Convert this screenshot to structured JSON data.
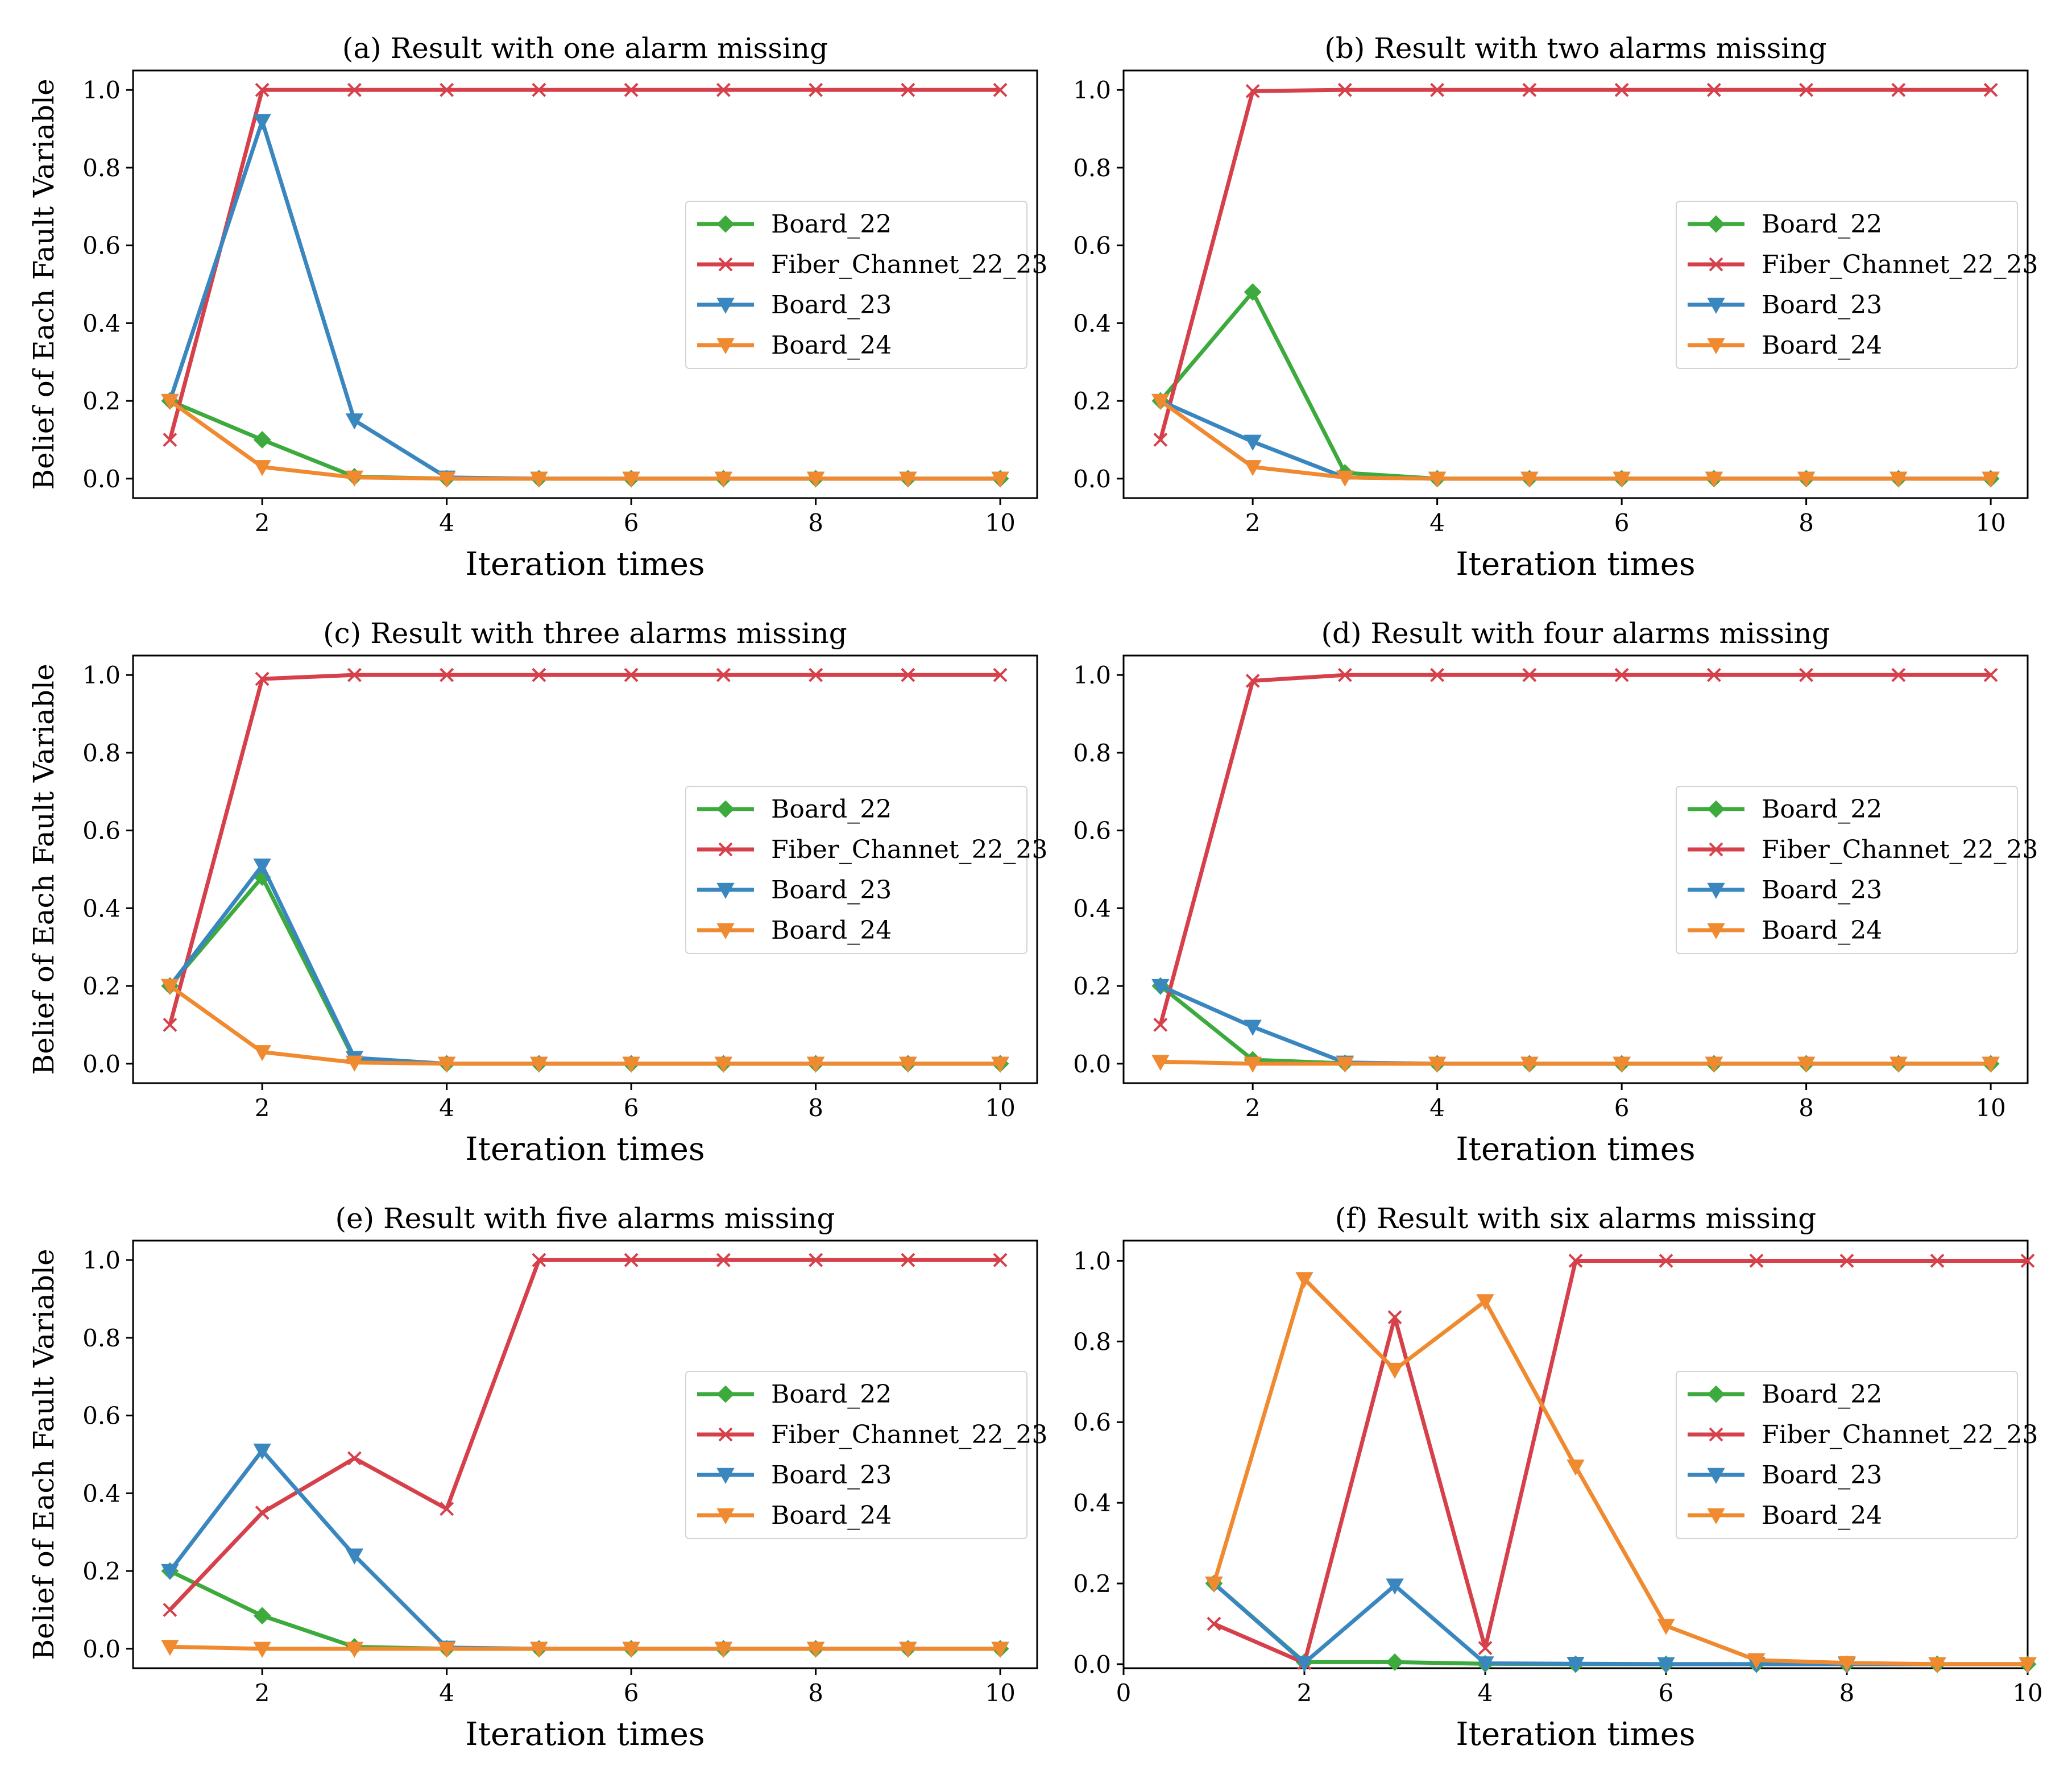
{
  "colors": {
    "Board_22": "#3caa3c",
    "Fiber_Channet_22_23": "#d6404a",
    "Board_23": "#3a87bf",
    "Board_24": "#f08a30"
  },
  "chart_data": [
    {
      "type": "line",
      "title": "(a) Result with one alarm missing",
      "xlabel": "Iteration times",
      "ylabel": "Belief of Each Fault Variable",
      "xlim": [
        0.6,
        10.4
      ],
      "ylim": [
        -0.05,
        1.05
      ],
      "xticks": [
        2,
        4,
        6,
        8,
        10
      ],
      "yticks": [
        0.0,
        0.2,
        0.4,
        0.6,
        0.8,
        1.0
      ],
      "legend_position": "center-right",
      "x": [
        1,
        2,
        3,
        4,
        5,
        6,
        7,
        8,
        9,
        10
      ],
      "series": [
        {
          "name": "Board_22",
          "marker": "diamond",
          "values": [
            0.2,
            0.1,
            0.005,
            0.0,
            0.0,
            0.0,
            0.0,
            0.0,
            0.0,
            0.0
          ]
        },
        {
          "name": "Fiber_Channet_22_23",
          "marker": "x",
          "values": [
            0.1,
            1.0,
            1.0,
            1.0,
            1.0,
            1.0,
            1.0,
            1.0,
            1.0,
            1.0
          ]
        },
        {
          "name": "Board_23",
          "marker": "triangle-down",
          "values": [
            0.2,
            0.92,
            0.15,
            0.003,
            0.0,
            0.0,
            0.0,
            0.0,
            0.0,
            0.0
          ]
        },
        {
          "name": "Board_24",
          "marker": "triangle-down",
          "values": [
            0.2,
            0.03,
            0.003,
            0.0,
            0.0,
            0.0,
            0.0,
            0.0,
            0.0,
            0.0
          ]
        }
      ]
    },
    {
      "type": "line",
      "title": "(b) Result with two alarms missing",
      "xlabel": "Iteration times",
      "ylabel": "",
      "xlim": [
        0.6,
        10.4
      ],
      "ylim": [
        -0.05,
        1.05
      ],
      "xticks": [
        2,
        4,
        6,
        8,
        10
      ],
      "yticks": [
        0.0,
        0.2,
        0.4,
        0.6,
        0.8,
        1.0
      ],
      "legend_position": "center-right",
      "x": [
        1,
        2,
        3,
        4,
        5,
        6,
        7,
        8,
        9,
        10
      ],
      "series": [
        {
          "name": "Board_22",
          "marker": "diamond",
          "values": [
            0.2,
            0.48,
            0.015,
            0.0,
            0.0,
            0.0,
            0.0,
            0.0,
            0.0,
            0.0
          ]
        },
        {
          "name": "Fiber_Channet_22_23",
          "marker": "x",
          "values": [
            0.1,
            0.997,
            1.0,
            1.0,
            1.0,
            1.0,
            1.0,
            1.0,
            1.0,
            1.0
          ]
        },
        {
          "name": "Board_23",
          "marker": "triangle-down",
          "values": [
            0.2,
            0.095,
            0.003,
            0.0,
            0.0,
            0.0,
            0.0,
            0.0,
            0.0,
            0.0
          ]
        },
        {
          "name": "Board_24",
          "marker": "triangle-down",
          "values": [
            0.2,
            0.03,
            0.003,
            0.0,
            0.0,
            0.0,
            0.0,
            0.0,
            0.0,
            0.0
          ]
        }
      ]
    },
    {
      "type": "line",
      "title": "(c) Result with three alarms missing",
      "xlabel": "Iteration times",
      "ylabel": "Belief of Each Fault Variable",
      "xlim": [
        0.6,
        10.4
      ],
      "ylim": [
        -0.05,
        1.05
      ],
      "xticks": [
        2,
        4,
        6,
        8,
        10
      ],
      "yticks": [
        0.0,
        0.2,
        0.4,
        0.6,
        0.8,
        1.0
      ],
      "legend_position": "center-right",
      "x": [
        1,
        2,
        3,
        4,
        5,
        6,
        7,
        8,
        9,
        10
      ],
      "series": [
        {
          "name": "Board_22",
          "marker": "diamond",
          "values": [
            0.2,
            0.48,
            0.01,
            0.0,
            0.0,
            0.0,
            0.0,
            0.0,
            0.0,
            0.0
          ]
        },
        {
          "name": "Fiber_Channet_22_23",
          "marker": "x",
          "values": [
            0.1,
            0.99,
            1.0,
            1.0,
            1.0,
            1.0,
            1.0,
            1.0,
            1.0,
            1.0
          ]
        },
        {
          "name": "Board_23",
          "marker": "triangle-down",
          "values": [
            0.2,
            0.51,
            0.015,
            0.0,
            0.0,
            0.0,
            0.0,
            0.0,
            0.0,
            0.0
          ]
        },
        {
          "name": "Board_24",
          "marker": "triangle-down",
          "values": [
            0.2,
            0.03,
            0.003,
            0.0,
            0.0,
            0.0,
            0.0,
            0.0,
            0.0,
            0.0
          ]
        }
      ]
    },
    {
      "type": "line",
      "title": "(d) Result with four alarms missing",
      "xlabel": "Iteration times",
      "ylabel": "",
      "xlim": [
        0.6,
        10.4
      ],
      "ylim": [
        -0.05,
        1.05
      ],
      "xticks": [
        2,
        4,
        6,
        8,
        10
      ],
      "yticks": [
        0.0,
        0.2,
        0.4,
        0.6,
        0.8,
        1.0
      ],
      "legend_position": "center-right",
      "x": [
        1,
        2,
        3,
        4,
        5,
        6,
        7,
        8,
        9,
        10
      ],
      "series": [
        {
          "name": "Board_22",
          "marker": "diamond",
          "values": [
            0.2,
            0.01,
            0.001,
            0.0,
            0.0,
            0.0,
            0.0,
            0.0,
            0.0,
            0.0
          ]
        },
        {
          "name": "Fiber_Channet_22_23",
          "marker": "x",
          "values": [
            0.1,
            0.985,
            1.0,
            1.0,
            1.0,
            1.0,
            1.0,
            1.0,
            1.0,
            1.0
          ]
        },
        {
          "name": "Board_23",
          "marker": "triangle-down",
          "values": [
            0.2,
            0.095,
            0.003,
            0.0,
            0.0,
            0.0,
            0.0,
            0.0,
            0.0,
            0.0
          ]
        },
        {
          "name": "Board_24",
          "marker": "triangle-down",
          "values": [
            0.005,
            0.0,
            0.0,
            0.0,
            0.0,
            0.0,
            0.0,
            0.0,
            0.0,
            0.0
          ]
        }
      ]
    },
    {
      "type": "line",
      "title": "(e) Result with five alarms missing",
      "xlabel": "Iteration times",
      "ylabel": "Belief of Each Fault Variable",
      "xlim": [
        0.6,
        10.4
      ],
      "ylim": [
        -0.05,
        1.05
      ],
      "xticks": [
        2,
        4,
        6,
        8,
        10
      ],
      "yticks": [
        0.0,
        0.2,
        0.4,
        0.6,
        0.8,
        1.0
      ],
      "legend_position": "center-right",
      "x": [
        1,
        2,
        3,
        4,
        5,
        6,
        7,
        8,
        9,
        10
      ],
      "series": [
        {
          "name": "Board_22",
          "marker": "diamond",
          "values": [
            0.2,
            0.085,
            0.005,
            0.0,
            0.0,
            0.0,
            0.0,
            0.0,
            0.0,
            0.0
          ]
        },
        {
          "name": "Fiber_Channet_22_23",
          "marker": "x",
          "values": [
            0.1,
            0.35,
            0.49,
            0.36,
            1.0,
            1.0,
            1.0,
            1.0,
            1.0,
            1.0
          ]
        },
        {
          "name": "Board_23",
          "marker": "triangle-down",
          "values": [
            0.2,
            0.51,
            0.24,
            0.003,
            0.0,
            0.0,
            0.0,
            0.0,
            0.0,
            0.0
          ]
        },
        {
          "name": "Board_24",
          "marker": "triangle-down",
          "values": [
            0.005,
            0.0,
            0.0,
            0.0,
            0.0,
            0.0,
            0.0,
            0.0,
            0.0,
            0.0
          ]
        }
      ]
    },
    {
      "type": "line",
      "title": "(f) Result with six alarms missing",
      "xlabel": "Iteration times",
      "ylabel": "",
      "xlim": [
        0,
        10
      ],
      "ylim": [
        -0.01,
        1.05
      ],
      "xticks": [
        0,
        2,
        4,
        6,
        8,
        10
      ],
      "yticks": [
        0.0,
        0.2,
        0.4,
        0.6,
        0.8,
        1.0
      ],
      "legend_position": "center-right",
      "x": [
        1,
        2,
        3,
        4,
        5,
        6,
        7,
        8,
        9,
        10
      ],
      "series": [
        {
          "name": "Board_22",
          "marker": "diamond",
          "values": [
            0.2,
            0.005,
            0.005,
            0.001,
            0.0,
            0.0,
            0.0,
            0.0,
            0.0,
            0.0
          ]
        },
        {
          "name": "Fiber_Channet_22_23",
          "marker": "x",
          "values": [
            0.1,
            0.003,
            0.86,
            0.04,
            1.0,
            1.0,
            1.0,
            1.0,
            1.0,
            1.0
          ]
        },
        {
          "name": "Board_23",
          "marker": "triangle-down",
          "values": [
            0.2,
            0.003,
            0.195,
            0.002,
            0.001,
            0.0,
            0.0,
            0.0,
            0.0,
            0.0
          ]
        },
        {
          "name": "Board_24",
          "marker": "triangle-down",
          "values": [
            0.2,
            0.955,
            0.73,
            0.9,
            0.49,
            0.095,
            0.01,
            0.003,
            0.0,
            0.0
          ]
        }
      ]
    }
  ]
}
